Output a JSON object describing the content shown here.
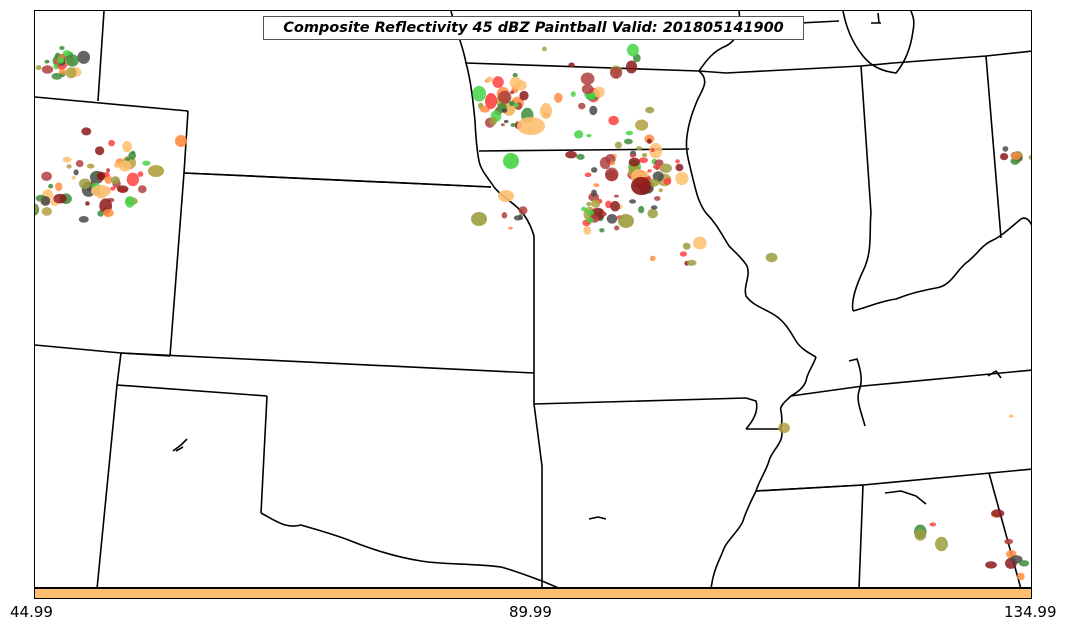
{
  "title": "Composite Reflectivity 45 dBZ Paintball Valid: 201805141900",
  "colorbar": {
    "color": "#fdbf6f",
    "tick_labels": [
      "44.99",
      "89.99",
      "134.99"
    ]
  },
  "colors": {
    "boundaries": "#000000",
    "paintball": [
      "#fdbf6f",
      "#ff4040",
      "#44d444",
      "#8b1a1a",
      "#3c8c3c",
      "#9c9c40",
      "#4a4a4a",
      "#ff8c40",
      "#b0a040",
      "#b04040"
    ]
  }
}
